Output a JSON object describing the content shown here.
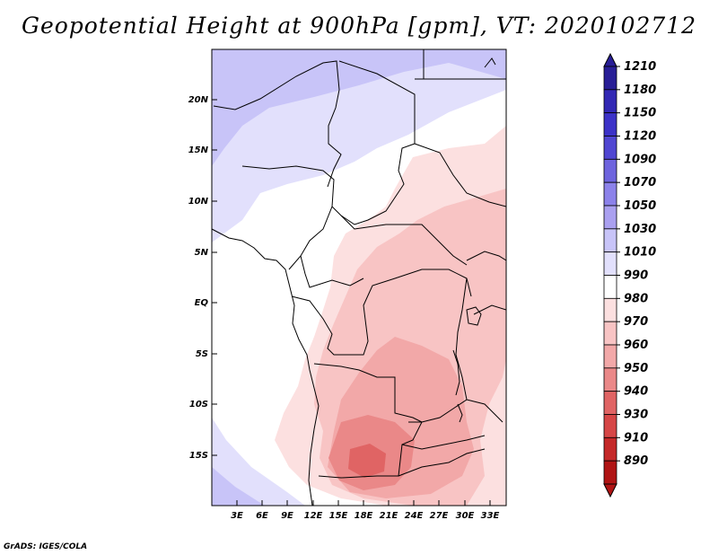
{
  "title": "Geopotential Height at 900hPa [gpm], VT: 2020102712",
  "credit": "GrADS: IGES/COLA",
  "map": {
    "lat_ticks": [
      "20N",
      "15N",
      "10N",
      "5N",
      "EQ",
      "5S",
      "10S",
      "15S"
    ],
    "lon_ticks": [
      "3E",
      "6E",
      "9E",
      "12E",
      "15E",
      "18E",
      "21E",
      "24E",
      "27E",
      "30E",
      "33E"
    ]
  },
  "colorbar": {
    "levels": [
      "1210",
      "1180",
      "1150",
      "1120",
      "1090",
      "1070",
      "1050",
      "1030",
      "1010",
      "990",
      "980",
      "970",
      "960",
      "950",
      "940",
      "930",
      "910",
      "890"
    ],
    "colors": [
      "#281e96",
      "#3228b4",
      "#3c32c8",
      "#5046d2",
      "#6e64de",
      "#8c82ea",
      "#aaa0f0",
      "#c8c4f8",
      "#e2e0fc",
      "#ffffff",
      "#fce0e0",
      "#f8c4c4",
      "#f2a8a8",
      "#ea8888",
      "#e06464",
      "#d64646",
      "#c42828",
      "#b01414"
    ]
  },
  "field_colors": {
    "c1030": "#c8c4f8",
    "c1010": "#e2e0fc",
    "c990": "#ffffff",
    "c980": "#fce0e0",
    "c970": "#f8c4c4",
    "c960": "#f2a8a8",
    "c950": "#ea8888",
    "c940": "#e06464"
  }
}
